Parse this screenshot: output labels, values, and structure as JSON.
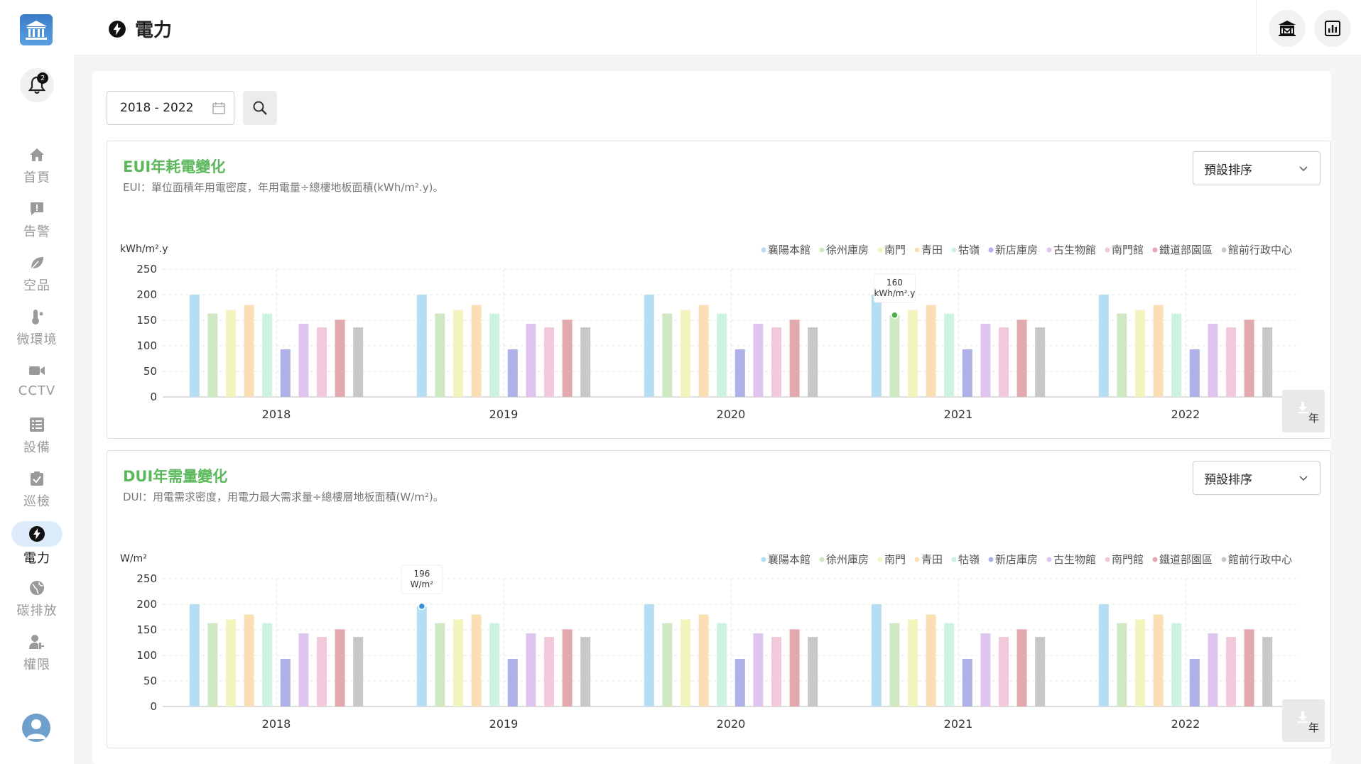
{
  "header": {
    "title": "電力"
  },
  "notifications": {
    "count": "2"
  },
  "sidebar": {
    "items": [
      {
        "label": "首頁",
        "icon": "home-icon"
      },
      {
        "label": "告警",
        "icon": "alert-icon"
      },
      {
        "label": "空品",
        "icon": "leaf-icon"
      },
      {
        "label": "微環境",
        "icon": "thermometer-icon"
      },
      {
        "label": "CCTV",
        "icon": "camera-icon"
      },
      {
        "label": "設備",
        "icon": "list-icon"
      },
      {
        "label": "巡檢",
        "icon": "checklist-icon"
      },
      {
        "label": "電力",
        "icon": "lightning-icon"
      },
      {
        "label": "碳排放",
        "icon": "globe-icon"
      },
      {
        "label": "權限",
        "icon": "user-key-icon"
      }
    ],
    "active_index": 7
  },
  "filter": {
    "date_range": "2018 - 2022"
  },
  "colors": {
    "series": [
      "#b5ddf3",
      "#cde8c3",
      "#f3f4bd",
      "#f9dfb3",
      "#cdf2df",
      "#aeb0e8",
      "#dec4ef",
      "#f3c8da",
      "#e3aaae",
      "#c8c8c8"
    ],
    "title_green": "#5cb85c"
  },
  "panels": [
    {
      "title": "EUI年耗電變化",
      "subtitle": "EUI：單位面積年用電密度，年用電量÷總樓地板面積(kWh/m².y)。",
      "sort_label": "預設排序",
      "unit_button": "年",
      "tooltip": {
        "value": "160",
        "unit": "kWh/m².y",
        "category_index": 3,
        "series_index": 1,
        "dot_color": "#4caf50"
      }
    },
    {
      "title": "DUI年需量變化",
      "subtitle": "DUI：用電需求密度，用電力最大需求量÷總樓層地板面積(W/m²)。",
      "sort_label": "預設排序",
      "unit_button": "年",
      "tooltip": {
        "value": "196",
        "unit": "W/m²",
        "category_index": 1,
        "series_index": 0,
        "dot_color": "#3b8fd6"
      }
    }
  ],
  "chart_data": [
    {
      "type": "bar",
      "title": "EUI年耗電變化",
      "ylabel": "kWh/m².y",
      "ylim": [
        0,
        250
      ],
      "yticks": [
        0,
        50,
        100,
        150,
        200,
        250
      ],
      "grid": true,
      "legend_position": "top-right",
      "categories": [
        "2018",
        "2019",
        "2020",
        "2021",
        "2022"
      ],
      "series": [
        {
          "name": "襄陽本館",
          "values": [
            200,
            200,
            200,
            200,
            200
          ]
        },
        {
          "name": "徐州庫房",
          "values": [
            163,
            163,
            163,
            160,
            163
          ]
        },
        {
          "name": "南門",
          "values": [
            170,
            170,
            170,
            170,
            170
          ]
        },
        {
          "name": "青田",
          "values": [
            180,
            180,
            180,
            180,
            180
          ]
        },
        {
          "name": "牯嶺",
          "values": [
            163,
            163,
            163,
            163,
            163
          ]
        },
        {
          "name": "新店庫房",
          "values": [
            93,
            93,
            93,
            93,
            93
          ]
        },
        {
          "name": "古生物館",
          "values": [
            143,
            143,
            143,
            143,
            143
          ]
        },
        {
          "name": "南門館",
          "values": [
            136,
            136,
            136,
            136,
            136
          ]
        },
        {
          "name": "鐵道部園區",
          "values": [
            151,
            151,
            151,
            151,
            151
          ]
        },
        {
          "name": "館前行政中心",
          "values": [
            136,
            136,
            136,
            136,
            136
          ]
        }
      ]
    },
    {
      "type": "bar",
      "title": "DUI年需量變化",
      "ylabel": "W/m²",
      "ylim": [
        0,
        250
      ],
      "yticks": [
        0,
        50,
        100,
        150,
        200,
        250
      ],
      "grid": true,
      "legend_position": "top-right",
      "categories": [
        "2018",
        "2019",
        "2020",
        "2021",
        "2022"
      ],
      "series": [
        {
          "name": "襄陽本館",
          "values": [
            200,
            196,
            200,
            200,
            200
          ]
        },
        {
          "name": "徐州庫房",
          "values": [
            163,
            163,
            163,
            163,
            163
          ]
        },
        {
          "name": "南門",
          "values": [
            170,
            170,
            170,
            170,
            170
          ]
        },
        {
          "name": "青田",
          "values": [
            180,
            180,
            180,
            180,
            180
          ]
        },
        {
          "name": "牯嶺",
          "values": [
            163,
            163,
            163,
            163,
            163
          ]
        },
        {
          "name": "新店庫房",
          "values": [
            93,
            93,
            93,
            93,
            93
          ]
        },
        {
          "name": "古生物館",
          "values": [
            143,
            143,
            143,
            143,
            143
          ]
        },
        {
          "name": "南門館",
          "values": [
            136,
            136,
            136,
            136,
            136
          ]
        },
        {
          "name": "鐵道部園區",
          "values": [
            151,
            151,
            151,
            151,
            151
          ]
        },
        {
          "name": "館前行政中心",
          "values": [
            136,
            136,
            136,
            136,
            136
          ]
        }
      ]
    }
  ]
}
